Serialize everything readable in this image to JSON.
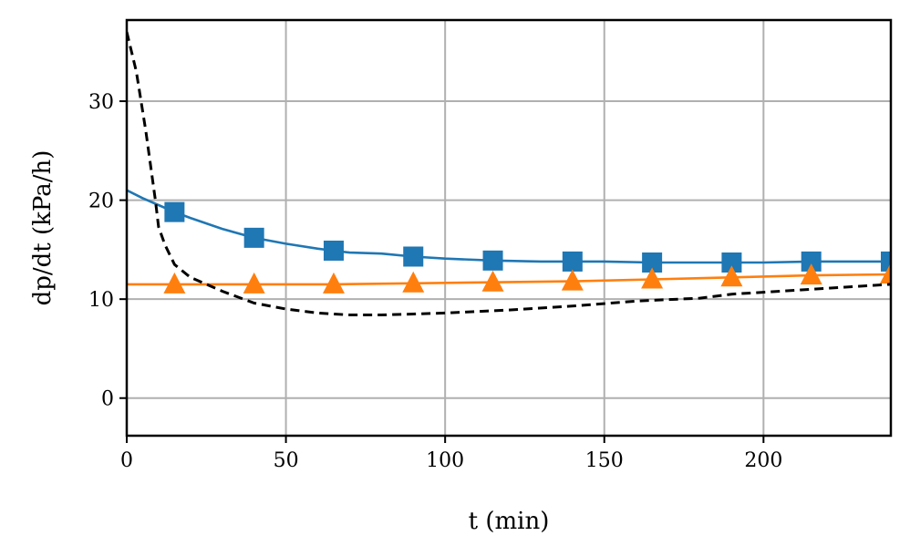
{
  "chart_data": {
    "type": "line",
    "title": "",
    "xlabel": "t (min)",
    "ylabel": "dp/dt (kPa/h)",
    "xlim": [
      0,
      240
    ],
    "ylim": [
      -3.8,
      38.2
    ],
    "xticks": [
      0,
      50,
      100,
      150,
      200
    ],
    "yticks": [
      0,
      10,
      20,
      30
    ],
    "grid": true,
    "series": [
      {
        "color": "#1f77b4",
        "style": "solid",
        "marker": "square",
        "marker_every_x": [
          15,
          40,
          65,
          90,
          115,
          140,
          165,
          190,
          215,
          240
        ],
        "x": [
          0,
          5,
          10,
          15,
          20,
          30,
          40,
          50,
          60,
          65,
          70,
          80,
          90,
          100,
          115,
          130,
          140,
          150,
          165,
          180,
          190,
          200,
          215,
          230,
          240
        ],
        "y": [
          21.0,
          20.2,
          19.5,
          18.8,
          18.2,
          17.1,
          16.2,
          15.6,
          15.1,
          14.9,
          14.7,
          14.6,
          14.3,
          14.1,
          13.9,
          13.8,
          13.8,
          13.8,
          13.7,
          13.7,
          13.7,
          13.7,
          13.8,
          13.8,
          13.8
        ]
      },
      {
        "color": "#ff7f0e",
        "style": "solid",
        "marker": "triangle",
        "marker_every_x": [
          15,
          40,
          65,
          90,
          115,
          140,
          165,
          190,
          215,
          240
        ],
        "x": [
          0,
          15,
          40,
          65,
          90,
          115,
          140,
          165,
          190,
          215,
          240
        ],
        "y": [
          11.5,
          11.5,
          11.5,
          11.5,
          11.6,
          11.7,
          11.8,
          12.0,
          12.2,
          12.4,
          12.5
        ]
      },
      {
        "color": "#000000",
        "style": "dashed",
        "marker": "none",
        "x": [
          0,
          3,
          6,
          9,
          10,
          12,
          15,
          20,
          25,
          30,
          40,
          50,
          60,
          70,
          80,
          90,
          100,
          120,
          140,
          160,
          180,
          190,
          200,
          220,
          240
        ],
        "y": [
          37.0,
          33.0,
          27.0,
          20.0,
          17.3,
          15.5,
          13.5,
          12.2,
          11.5,
          10.8,
          9.6,
          9.0,
          8.6,
          8.4,
          8.4,
          8.5,
          8.6,
          8.9,
          9.3,
          9.8,
          10.1,
          10.5,
          10.7,
          11.1,
          11.5
        ]
      }
    ]
  }
}
